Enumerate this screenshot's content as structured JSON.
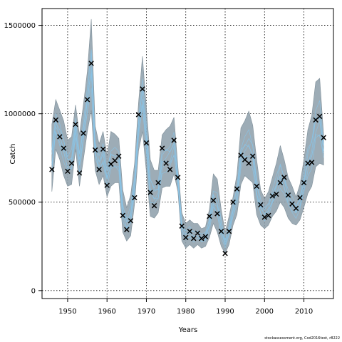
{
  "chart_data": {
    "type": "line",
    "xlabel": "Years",
    "ylabel": "Catch",
    "xlim": [
      1943.5,
      2017.5
    ],
    "ylim": [
      -45000,
      1595000
    ],
    "xticks": [
      1950,
      1960,
      1970,
      1980,
      1990,
      2000,
      2010
    ],
    "yticks": [
      0,
      500000,
      1000000,
      1500000
    ],
    "ytick_labels": [
      "0",
      "500000",
      "1000000",
      "1500000"
    ],
    "grid": true,
    "colors": {
      "band": "#8c9ea9",
      "ensemble": "#89c4e8",
      "marker": "#000000"
    },
    "x": [
      1946,
      1947,
      1948,
      1949,
      1950,
      1951,
      1952,
      1953,
      1954,
      1955,
      1956,
      1957,
      1958,
      1959,
      1960,
      1961,
      1962,
      1963,
      1964,
      1965,
      1966,
      1967,
      1968,
      1969,
      1970,
      1971,
      1972,
      1973,
      1974,
      1975,
      1976,
      1977,
      1978,
      1979,
      1980,
      1981,
      1982,
      1983,
      1984,
      1985,
      1986,
      1987,
      1988,
      1989,
      1990,
      1991,
      1992,
      1993,
      1994,
      1995,
      1996,
      1997,
      1998,
      1999,
      2000,
      2001,
      2002,
      2003,
      2004,
      2005,
      2006,
      2007,
      2008,
      2009,
      2010,
      2011,
      2012,
      2013,
      2014,
      2015
    ],
    "series": [
      {
        "type": "scatter",
        "marker": "x",
        "values": [
          685000,
          965000,
          870000,
          805000,
          675000,
          720000,
          940000,
          665000,
          890000,
          1080000,
          1285000,
          795000,
          685000,
          800000,
          595000,
          715000,
          735000,
          760000,
          425000,
          345000,
          395000,
          525000,
          995000,
          1140000,
          835000,
          555000,
          480000,
          610000,
          805000,
          720000,
          685000,
          850000,
          640000,
          365000,
          300000,
          335000,
          295000,
          325000,
          295000,
          305000,
          420000,
          510000,
          435000,
          335000,
          210000,
          335000,
          500000,
          575000,
          765000,
          740000,
          720000,
          760000,
          590000,
          485000,
          415000,
          425000,
          535000,
          545000,
          610000,
          640000,
          540000,
          490000,
          465000,
          525000,
          610000,
          720000,
          725000,
          965000,
          985000,
          865000
        ]
      },
      {
        "type": "band",
        "name": "",
        "upper": [
          940000,
          1080000,
          1020000,
          960000,
          850000,
          870000,
          1050000,
          880000,
          1050000,
          1240000,
          1535000,
          930000,
          830000,
          900000,
          760000,
          900000,
          885000,
          860000,
          570000,
          470000,
          540000,
          720000,
          1060000,
          1325000,
          1030000,
          740000,
          680000,
          680000,
          880000,
          910000,
          930000,
          980000,
          700000,
          440000,
          380000,
          400000,
          380000,
          380000,
          350000,
          360000,
          460000,
          660000,
          630000,
          460000,
          330000,
          420000,
          530000,
          660000,
          920000,
          960000,
          1015000,
          935000,
          740000,
          570000,
          520000,
          560000,
          640000,
          720000,
          820000,
          740000,
          640000,
          590000,
          530000,
          600000,
          740000,
          910000,
          990000,
          1180000,
          1200000,
          880000
        ],
        "lower": [
          560000,
          800000,
          740000,
          650000,
          590000,
          600000,
          800000,
          590000,
          740000,
          900000,
          1020000,
          680000,
          600000,
          650000,
          530000,
          590000,
          610000,
          610000,
          330000,
          280000,
          310000,
          490000,
          790000,
          900000,
          670000,
          420000,
          410000,
          440000,
          580000,
          590000,
          590000,
          660000,
          560000,
          280000,
          240000,
          260000,
          240000,
          260000,
          240000,
          250000,
          300000,
          380000,
          330000,
          250000,
          210000,
          260000,
          370000,
          430000,
          600000,
          650000,
          630000,
          610000,
          430000,
          370000,
          350000,
          370000,
          420000,
          450000,
          500000,
          470000,
          410000,
          380000,
          370000,
          400000,
          470000,
          550000,
          590000,
          700000,
          720000,
          710000
        ]
      }
    ]
  },
  "footer": {
    "note": "stockassessment.org, Cod2016test, r8222"
  }
}
